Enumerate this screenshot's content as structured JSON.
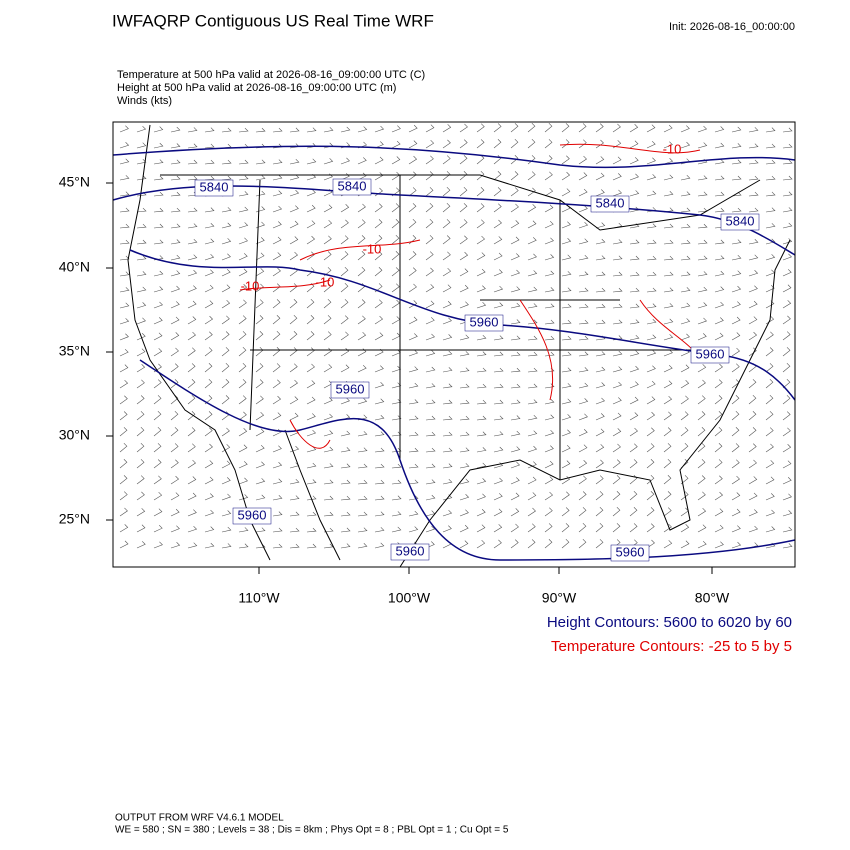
{
  "header": {
    "title": "IWFAQRP Contiguous US Real Time WRF",
    "init": "Init: 2026-08-16_00:00:00"
  },
  "fields": [
    "Temperature at 500 hPa valid at 2026-08-16_09:00:00 UTC   (C)",
    "Height at 500 hPa valid at 2026-08-16_09:00:00 UTC   (m)",
    "Winds   (kts)"
  ],
  "map": {
    "lat_labels": [
      "45°N",
      "40°N",
      "35°N",
      "30°N",
      "25°N"
    ],
    "lon_labels": [
      "110°W",
      "100°W",
      "90°W",
      "80°W"
    ],
    "height_labels": [
      "5840",
      "5840",
      "5840",
      "5840",
      "5960",
      "5960",
      "5960",
      "5960",
      "5960",
      "5960"
    ],
    "temperature_labels": [
      "-10",
      "-10",
      "-10",
      "-10"
    ]
  },
  "legend": [
    "Height Contours: 5600 to 6020 by 60",
    "Temperature Contours: -25 to 5 by 5"
  ],
  "footer": [
    "OUTPUT FROM WRF V4.6.1 MODEL",
    "WE = 580 ; SN = 380 ; Levels = 38 ; Dis = 8km ; Phys Opt = 8 ; PBL Opt = 1 ; Cu Opt = 5"
  ]
}
